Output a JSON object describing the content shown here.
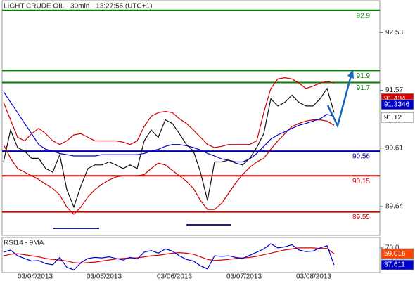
{
  "chart_data": [
    {
      "type": "line",
      "title": "LIGHT CRUDE OIL - 30min - 13:27:55 (UTC+1)",
      "x": [
        0,
        1,
        2,
        3,
        4,
        5,
        6,
        7,
        8,
        9,
        10,
        11,
        12,
        13,
        14,
        15,
        16,
        17,
        18,
        19,
        20,
        21,
        22,
        23,
        24,
        25,
        26,
        27,
        28,
        29,
        30,
        31,
        32,
        33,
        34,
        35,
        36,
        37,
        38,
        39,
        40,
        41,
        42,
        43,
        44,
        45,
        46,
        47
      ],
      "series": [
        {
          "color": "#cc0000",
          "values": [
            91.37,
            91.08,
            90.79,
            90.73,
            90.85,
            90.94,
            90.85,
            90.73,
            90.67,
            90.73,
            90.83,
            90.85,
            90.79,
            90.73,
            90.73,
            90.73,
            90.73,
            90.71,
            90.67,
            90.73,
            90.97,
            91.14,
            91.2,
            91.22,
            91.2,
            91.1,
            91.02,
            90.91,
            90.79,
            90.67,
            90.62,
            90.64,
            90.67,
            90.67,
            90.67,
            90.67,
            90.73,
            91.2,
            91.6,
            91.76,
            91.78,
            91.76,
            91.69,
            91.6,
            91.64,
            91.69,
            91.72,
            91.69
          ]
        },
        {
          "color": "#cc0000",
          "values": [
            90.67,
            90.44,
            90.27,
            90.21,
            90.15,
            90.09,
            90.01,
            89.94,
            89.83,
            89.63,
            89.51,
            89.63,
            89.8,
            89.92,
            90.01,
            90.08,
            90.13,
            90.15,
            90.15,
            90.15,
            90.17,
            90.27,
            90.36,
            90.33,
            90.24,
            90.15,
            90.06,
            89.94,
            89.74,
            89.59,
            89.59,
            89.69,
            89.86,
            90.03,
            90.17,
            90.29,
            90.38,
            90.44,
            90.59,
            90.73,
            90.85,
            90.97,
            91.02,
            91.06,
            91.08,
            91.08,
            91.06,
            90.99
          ]
        },
        {
          "color": "#0000cc",
          "values": [
            91.55,
            91.37,
            91.2,
            91.02,
            90.85,
            90.67,
            90.59,
            90.56,
            90.52,
            90.5,
            90.48,
            90.48,
            90.48,
            90.48,
            90.5,
            90.5,
            90.5,
            90.5,
            90.5,
            90.5,
            90.52,
            90.56,
            90.59,
            90.64,
            90.67,
            90.67,
            90.65,
            90.62,
            90.58,
            90.52,
            90.48,
            90.43,
            90.41,
            90.38,
            90.38,
            90.43,
            90.52,
            90.64,
            90.76,
            90.83,
            90.88,
            90.94,
            90.99,
            91.02,
            91.06,
            91.1,
            91.17,
            91.14
          ]
        },
        {
          "color": "#111111",
          "values": [
            90.38,
            90.91,
            90.62,
            90.56,
            90.44,
            90.44,
            90.27,
            90.21,
            90.5,
            89.92,
            89.63,
            89.98,
            90.27,
            90.33,
            90.33,
            90.38,
            90.33,
            90.27,
            90.33,
            90.27,
            90.73,
            90.91,
            90.79,
            91.08,
            91.02,
            90.85,
            90.67,
            90.56,
            90.21,
            89.74,
            90.38,
            90.38,
            90.41,
            90.36,
            90.33,
            90.44,
            90.62,
            90.85,
            91.43,
            91.31,
            91.37,
            91.49,
            91.37,
            91.31,
            91.31,
            91.43,
            91.6,
            91.2
          ]
        }
      ],
      "xlim": [
        -0.2,
        53.5
      ],
      "ylim": [
        89.16,
        93.06
      ],
      "yticks": [
        92.53,
        91.57,
        90.61,
        89.64
      ],
      "levels": [
        {
          "value": 92.9,
          "color": "#008000"
        },
        {
          "value": 91.9,
          "color": "#008000"
        },
        {
          "value": 91.7,
          "color": "#008000"
        },
        {
          "value": 90.56,
          "color": "#0000b0"
        },
        {
          "value": 90.15,
          "color": "#cc0000"
        },
        {
          "value": 89.55,
          "color": "#cc0000"
        }
      ],
      "last_labels": [
        {
          "value": 91.434,
          "color": "#dd0000",
          "text_color": "#ffffff"
        },
        {
          "value": 91.3346,
          "color": "#0000cc",
          "text_color": "#ffffff"
        },
        {
          "value": 91.12,
          "color": "#ffffff",
          "text_color": "#000000"
        }
      ]
    },
    {
      "type": "line",
      "title": "RSI14 - 9MA",
      "x": [
        0,
        1,
        2,
        3,
        4,
        5,
        6,
        7,
        8,
        9,
        10,
        11,
        12,
        13,
        14,
        15,
        16,
        17,
        18,
        19,
        20,
        21,
        22,
        23,
        24,
        25,
        26,
        27,
        28,
        29,
        30,
        31,
        32,
        33,
        34,
        35,
        36,
        37,
        38,
        39,
        40,
        41,
        42,
        43,
        44,
        45,
        46,
        47
      ],
      "series": [
        {
          "color": "#dd0000",
          "values": [
            55,
            58,
            59,
            57,
            55,
            53,
            50,
            48,
            47,
            45,
            42,
            41,
            42,
            43,
            45,
            47,
            49,
            50,
            51,
            51,
            53,
            55,
            56,
            58,
            60,
            61,
            60,
            58,
            53,
            48,
            46,
            47,
            48,
            50,
            51,
            52,
            54,
            57,
            60,
            63,
            66,
            68,
            70,
            70,
            70,
            69,
            69,
            59.016
          ]
        },
        {
          "color": "#0000cc",
          "values": [
            62,
            66,
            55,
            50,
            45,
            46,
            40,
            38,
            52,
            33,
            28,
            42,
            50,
            52,
            51,
            53,
            50,
            47,
            52,
            49,
            62,
            65,
            60,
            68,
            64,
            55,
            48,
            45,
            36,
            30,
            55,
            54,
            55,
            52,
            50,
            56,
            62,
            68,
            78,
            70,
            72,
            76,
            66,
            63,
            64,
            70,
            74,
            37.611
          ]
        }
      ],
      "xlim": [
        -0.2,
        53.5
      ],
      "ylim": [
        23,
        90
      ],
      "yticks": [
        {
          "value": 70,
          "label": "70.0"
        }
      ],
      "xticks": [
        {
          "value": 4.5,
          "label": "03/04/2013"
        },
        {
          "value": 14.3,
          "label": "03/05/2013"
        },
        {
          "value": 24.3,
          "label": "03/06/2013"
        },
        {
          "value": 34.2,
          "label": "03/07/2013"
        },
        {
          "value": 44.1,
          "label": "03/08/2013"
        }
      ],
      "last_labels": [
        {
          "value": 59.016,
          "color": "#ff4400",
          "text_color": "#ffffff"
        },
        {
          "value": 37.611,
          "color": "#0000cc",
          "text_color": "#ffffff"
        }
      ]
    }
  ]
}
